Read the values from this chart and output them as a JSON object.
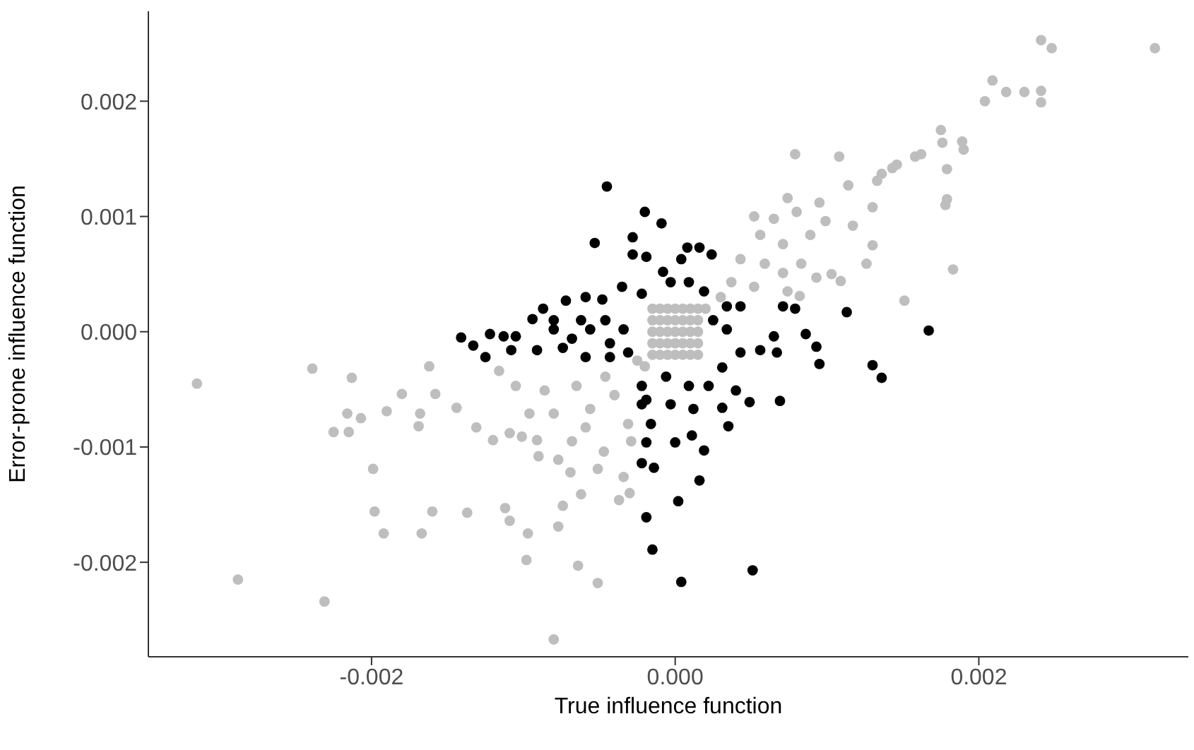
{
  "chart_data": {
    "type": "scatter",
    "xlabel": "True influence function",
    "ylabel": "Error-prone influence function",
    "xlim": [
      -0.00347,
      0.00338
    ],
    "ylim": [
      -0.00282,
      0.00278
    ],
    "xticks": [
      {
        "value": -0.002,
        "label": "-0.002"
      },
      {
        "value": 0,
        "label": "0.000"
      },
      {
        "value": 0.002,
        "label": "0.002"
      }
    ],
    "yticks": [
      {
        "value": -0.002,
        "label": "-0.002"
      },
      {
        "value": -0.001,
        "label": "-0.001"
      },
      {
        "value": 0,
        "label": "0.000"
      },
      {
        "value": 0.001,
        "label": "0.001"
      },
      {
        "value": 0.002,
        "label": "0.002"
      }
    ],
    "grid": false,
    "marker": "circle",
    "series": [
      {
        "color": "#000000",
        "x": [
          -0.00045,
          -0.0002,
          -9e-05,
          -0.00053,
          -0.00028,
          -0.00028,
          -0.00019,
          -0.00141,
          -0.00133,
          -0.00125,
          -0.00122,
          -0.00113,
          -0.00105,
          -0.00108,
          -0.00094,
          -0.00087,
          -0.00091,
          -0.00072,
          -0.00059,
          -0.00048,
          -0.00035,
          -0.00022,
          -0.0008,
          -0.00068,
          -0.00056,
          -0.00043,
          -0.00034,
          -0.00074,
          -0.00059,
          -0.00043,
          -0.00031,
          -0.0008,
          -0.00062,
          -0.00046,
          -0.00022,
          -0.00014,
          -0.00019,
          -0.00015,
          -0.00019,
          -0.00016,
          -0.00022,
          -0.00022,
          8e-05,
          0.00016,
          4e-05,
          0.00024,
          -8e-05,
          0.00113,
          0.00167,
          0.00086,
          0.00093,
          0.00095,
          0.0013,
          0.00136,
          0.00069,
          0.00049,
          0.00035,
          0.00031,
          0.00019,
          0.00016,
          2e-05,
          4e-05,
          0.00051,
          0.00011,
          0,
          0.00067,
          0.00065,
          0.00056,
          0.0004,
          0.00071,
          0.00079,
          0.00043,
          0.00034,
          0.00043,
          0.00031,
          -6e-05,
          9e-05,
          -0.00019,
          -3e-05,
          0.00012,
          0.00022,
          -3e-05,
          9e-05,
          0.00019,
          0.00034,
          0.00025
        ],
        "values": [
          0.00126,
          0.00104,
          0.00094,
          0.00077,
          0.00082,
          0.00067,
          0.00065,
          -5e-05,
          -0.00012,
          -0.00022,
          -2e-05,
          -4e-05,
          -4e-05,
          -0.00016,
          0.00011,
          0.0002,
          -0.00016,
          0.00027,
          0.0003,
          0.00028,
          0.00039,
          0.00033,
          2e-05,
          -6e-05,
          2e-05,
          -0.0001,
          2e-05,
          -0.00014,
          -0.00022,
          -0.00022,
          -0.00018,
          0.0001,
          0.0001,
          0.0001,
          -0.00114,
          -0.00118,
          -0.00161,
          -0.00189,
          -0.00096,
          -0.0008,
          -0.00063,
          -0.00047,
          0.00073,
          0.00073,
          0.00063,
          0.00067,
          0.00052,
          0.00017,
          1e-05,
          -2e-05,
          -0.00013,
          -0.00028,
          -0.00029,
          -0.0004,
          -0.0006,
          -0.00061,
          -0.00082,
          -0.00066,
          -0.00103,
          -0.00129,
          -0.00147,
          -0.00217,
          -0.00207,
          -0.0009,
          -0.00096,
          -0.00018,
          -4e-05,
          -0.00016,
          -0.00051,
          0.00022,
          0.0002,
          0.00022,
          2e-05,
          -0.00018,
          -0.00031,
          -0.00039,
          -0.00047,
          -0.00059,
          -0.00063,
          -0.00067,
          -0.00047,
          0.00043,
          0.00043,
          0.00035,
          0.00022,
          0.0001
        ]
      },
      {
        "color": "#bebebe",
        "x": [
          -0.00315,
          -0.00288,
          -0.00231,
          -0.00239,
          -0.00213,
          -0.00225,
          -0.00215,
          -0.00216,
          -0.00207,
          -0.00199,
          -0.00198,
          -0.00192,
          -0.0019,
          -0.0018,
          -0.00169,
          -0.00168,
          -0.00167,
          -0.00162,
          -0.0016,
          -0.00158,
          -0.00144,
          -0.00137,
          -0.00131,
          -0.0012,
          -0.00112,
          -0.00109,
          -0.00109,
          -0.00101,
          -0.00098,
          -0.00097,
          -0.0009,
          -0.00091,
          -0.0008,
          -0.00077,
          -0.00074,
          -0.00077,
          -0.00069,
          -0.00064,
          -0.00062,
          -0.00051,
          -0.00047,
          -0.00051,
          -0.00037,
          -0.0003,
          -0.00034,
          -0.00116,
          -0.00105,
          -0.00086,
          -0.00096,
          -0.0008,
          -0.00065,
          -0.00056,
          -0.00046,
          -0.0004,
          -0.00068,
          -0.00059,
          -0.00031,
          -0.00029,
          -0.00015,
          -0.0001,
          -5e-05,
          0,
          5e-05,
          0.0001,
          0.00015,
          -0.00015,
          -0.0001,
          -5e-05,
          0,
          5e-05,
          0.0001,
          0.00015,
          -0.00015,
          -0.0001,
          -5e-05,
          0,
          5e-05,
          0.0001,
          0.00015,
          -0.00015,
          -0.0001,
          -5e-05,
          0,
          5e-05,
          0.0001,
          0.00015,
          -0.00015,
          -0.0001,
          -5e-05,
          0,
          5e-05,
          0.0001,
          0.00015,
          -0.0002,
          -0.00025,
          0.0002,
          0.0003,
          0.00241,
          0.00248,
          0.00316,
          0.00209,
          0.00218,
          0.0023,
          0.00241,
          0.00241,
          0.00204,
          0.00175,
          0.00176,
          0.00189,
          0.0019,
          0.00179,
          0.00179,
          0.00178,
          0.00183,
          0.00151,
          0.00162,
          0.00158,
          0.00146,
          0.00143,
          0.00136,
          0.00133,
          0.00108,
          0.00079,
          0.00114,
          0.0013,
          0.0013,
          0.00126,
          0.00109,
          0.00103,
          0.00117,
          0.00095,
          0.00074,
          0.00052,
          0.00065,
          0.0008,
          0.00099,
          0.00056,
          0.00071,
          0.00089,
          0.00043,
          0.00059,
          0.00083,
          0.00037,
          0.00052,
          0.00074,
          0.00082,
          0.00093,
          0.00071
        ],
        "values": [
          -0.00045,
          -0.00215,
          -0.00234,
          -0.00032,
          -0.0004,
          -0.00087,
          -0.00087,
          -0.00071,
          -0.00075,
          -0.00119,
          -0.00156,
          -0.00175,
          -0.00069,
          -0.00054,
          -0.00082,
          -0.00071,
          -0.00175,
          -0.0003,
          -0.00156,
          -0.00054,
          -0.00066,
          -0.00157,
          -0.00083,
          -0.00094,
          -0.00153,
          -0.00164,
          -0.00088,
          -0.00091,
          -0.00198,
          -0.00175,
          -0.00108,
          -0.00094,
          -0.00267,
          -0.00111,
          -0.00151,
          -0.00169,
          -0.00122,
          -0.00203,
          -0.00141,
          -0.00218,
          -0.00104,
          -0.00119,
          -0.00146,
          -0.0014,
          -0.00126,
          -0.00034,
          -0.00047,
          -0.00051,
          -0.00071,
          -0.00071,
          -0.00047,
          -0.00067,
          -0.00039,
          -0.00055,
          -0.00095,
          -0.00083,
          -0.0008,
          -0.00095,
          -0.0002,
          -0.0002,
          -0.0002,
          -0.0002,
          -0.0002,
          -0.0002,
          -0.0002,
          -0.0001,
          -0.0001,
          -0.0001,
          -0.0001,
          -0.0001,
          -0.0001,
          -0.0001,
          0,
          0,
          0,
          0,
          0,
          0,
          0,
          0.0001,
          0.0001,
          0.0001,
          0.0001,
          0.0001,
          0.0001,
          0.0001,
          0.0002,
          0.0002,
          0.0002,
          0.0002,
          0.0002,
          0.0002,
          0.0002,
          -0.0003,
          -0.00025,
          0.0002,
          0.0003,
          0.00253,
          0.00246,
          0.00246,
          0.00218,
          0.00208,
          0.00208,
          0.00209,
          0.00199,
          0.002,
          0.00175,
          0.00164,
          0.00165,
          0.00158,
          0.00141,
          0.00115,
          0.0011,
          0.00054,
          0.00027,
          0.00154,
          0.00152,
          0.00145,
          0.00142,
          0.00137,
          0.00131,
          0.00152,
          0.00154,
          0.00127,
          0.00108,
          0.00075,
          0.00059,
          0.00044,
          0.0005,
          0.00092,
          0.00112,
          0.00116,
          0.001,
          0.00098,
          0.00104,
          0.00096,
          0.00084,
          0.00076,
          0.00084,
          0.00063,
          0.00059,
          0.00059,
          0.00043,
          0.00039,
          0.00035,
          0.00031,
          0.00047,
          0.00051
        ]
      }
    ]
  }
}
